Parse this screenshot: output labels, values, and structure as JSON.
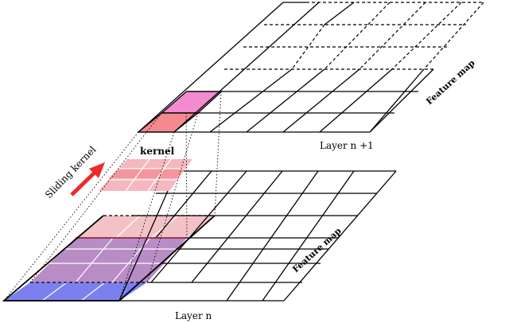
{
  "labels": {
    "top_feature_map": "Feature map",
    "top_layer": "Layer n +1",
    "bottom_feature_map": "Feature map",
    "bottom_layer": "Layer n",
    "kernel": "kernel",
    "sliding_kernel": "Sliding kernel"
  },
  "colors": {
    "kernel_pink": "#f6b7bf",
    "kernel_red": "#f37f86",
    "output_magenta": "#f28bd0",
    "output_salmon": "#f4898f",
    "window_purple": "#b88cc5",
    "window_pink": "#f3c2c7",
    "bottom_row_blue": "#7b80ee",
    "arrow_red": "#ee2a2a"
  }
}
